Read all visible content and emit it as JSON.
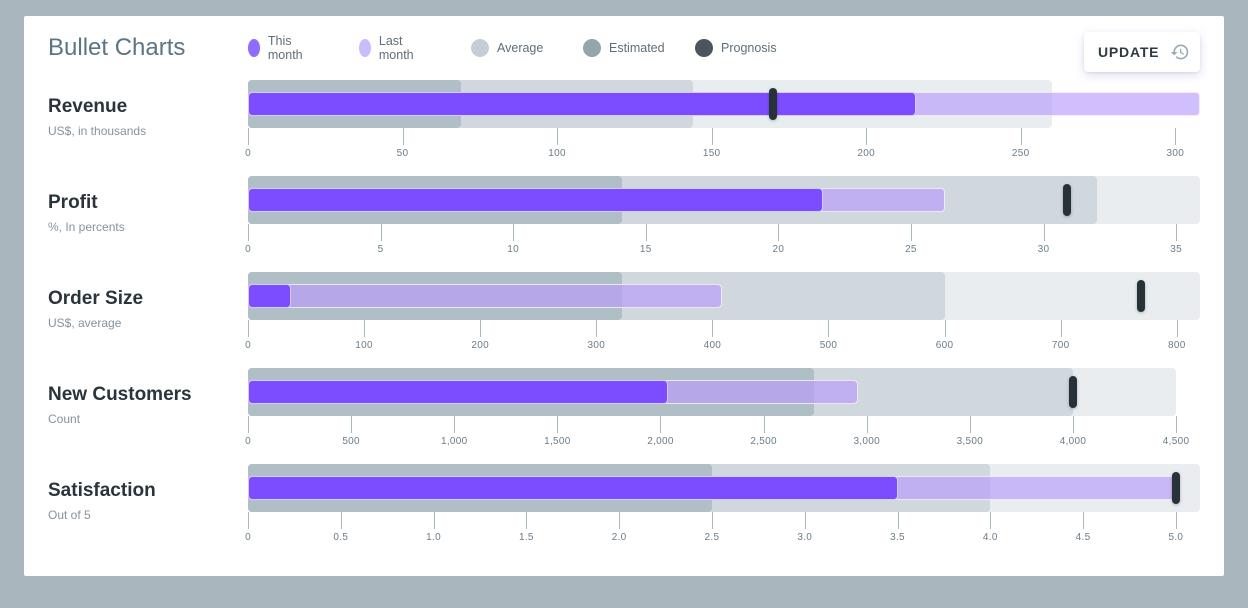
{
  "header": {
    "title": "Bullet Charts",
    "update_label": "UPDATE",
    "update_icon": "history-icon"
  },
  "legend": [
    {
      "label": "This month",
      "color": "#8f6bff"
    },
    {
      "label": "Last month",
      "color": "#cbbcfc"
    },
    {
      "label": "Average",
      "color": "#c6ced3"
    },
    {
      "label": "Estimated",
      "color": "#95a5ae"
    },
    {
      "label": "Prognosis",
      "color": "#4d555a"
    }
  ],
  "colors": {
    "this_month": "#7c4dff",
    "last_month": "#b99bfa",
    "range_light": "#e9edf0",
    "range_average": "#d0d8de",
    "range_estimated": "#b0bec5",
    "prognosis": "#263238"
  },
  "chart_data": [
    {
      "type": "bullet",
      "title": "Revenue",
      "subtitle": "US$, in thousands",
      "scale_max": 308,
      "ticks": [
        0,
        50,
        100,
        150,
        200,
        250,
        300
      ],
      "tick_labels": [
        "0",
        "50",
        "100",
        "150",
        "200",
        "250",
        "300"
      ],
      "ranges": {
        "estimated": 69,
        "average": 144,
        "max": 260
      },
      "this_month": 216,
      "last_month": 308,
      "prognosis": 170
    },
    {
      "type": "bullet",
      "title": "Profit",
      "subtitle": "%, In percents",
      "scale_max": 35.9,
      "ticks": [
        0,
        5,
        10,
        15,
        20,
        25,
        30,
        35
      ],
      "tick_labels": [
        "0",
        "5",
        "10",
        "15",
        "20",
        "25",
        "30",
        "35"
      ],
      "ranges": {
        "estimated": 14.1,
        "average": 32,
        "max": 35.9
      },
      "this_month": 21.7,
      "last_month": 26.3,
      "prognosis": 30.9
    },
    {
      "type": "bullet",
      "title": "Order Size",
      "subtitle": "US$, average",
      "scale_max": 820,
      "ticks": [
        0,
        100,
        200,
        300,
        400,
        500,
        600,
        700,
        800
      ],
      "tick_labels": [
        "0",
        "100",
        "200",
        "300",
        "400",
        "500",
        "600",
        "700",
        "800"
      ],
      "ranges": {
        "estimated": 322,
        "average": 600,
        "max": 820
      },
      "this_month": 37,
      "last_month": 408,
      "prognosis": 769
    },
    {
      "type": "bullet",
      "title": "New Customers",
      "subtitle": "Count",
      "scale_max": 4616,
      "ticks": [
        0,
        500,
        1000,
        1500,
        2000,
        2500,
        3000,
        3500,
        4000,
        4500
      ],
      "tick_labels": [
        "0",
        "500",
        "1,000",
        "1,500",
        "2,000",
        "2,500",
        "3,000",
        "3,500",
        "4,000",
        "4,500"
      ],
      "ranges": {
        "estimated": 2745,
        "average": 4000,
        "max": 4500
      },
      "this_month": 2037,
      "last_month": 2958,
      "prognosis": 4000
    },
    {
      "type": "bullet",
      "title": "Satisfaction",
      "subtitle": "Out of 5",
      "scale_max": 5.13,
      "ticks": [
        0,
        0.5,
        1.0,
        1.5,
        2.0,
        2.5,
        3.0,
        3.5,
        4.0,
        4.5,
        5.0
      ],
      "tick_labels": [
        "0",
        "0.5",
        "1.0",
        "1.5",
        "2.0",
        "2.5",
        "3.0",
        "3.5",
        "4.0",
        "4.5",
        "5.0"
      ],
      "ranges": {
        "estimated": 2.5,
        "average": 4.0,
        "max": 5.13
      },
      "this_month": 3.5,
      "last_month": 5.0,
      "prognosis": 5.0
    }
  ]
}
